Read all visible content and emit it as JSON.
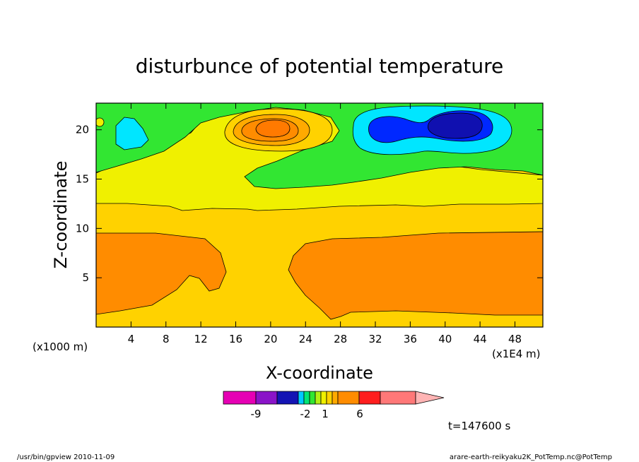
{
  "chart_data": {
    "type": "heatmap",
    "title": "disturbunce of potential temperature",
    "xlabel": "X-coordinate",
    "ylabel": "Z-coordinate",
    "x_unit_left": "(x1000 m)",
    "x_unit_right": "(x1E4 m)",
    "x_ticks": [
      "4",
      "8",
      "12",
      "16",
      "20",
      "24",
      "28",
      "32",
      "36",
      "40",
      "44",
      "48"
    ],
    "y_ticks": [
      "5",
      "10",
      "15",
      "20"
    ],
    "xlim": [
      0,
      51.2
    ],
    "ylim": [
      0,
      22.7
    ],
    "time_label": "t=147600 s",
    "colorbar": {
      "colors": [
        "#e600b4",
        "#8a14c8",
        "#1414b4",
        "#1e3cff",
        "#00c8ff",
        "#00e676",
        "#32e632",
        "#b4f014",
        "#f0f000",
        "#ffd200",
        "#ffaa00",
        "#ff8c00",
        "#ff1e1e",
        "#ff7878",
        "#ffb4b4"
      ],
      "tick_labels": [
        "-9",
        "-2",
        "1",
        "6"
      ]
    },
    "regions": [
      {
        "level": "0 to 1",
        "color": "#32e632",
        "area": "upper layer z > 16 (background)"
      },
      {
        "level": "-1 to 0",
        "color": "#00c8ff",
        "area": "small cell near x=4, z=20.5"
      },
      {
        "level": "-2 to -1",
        "color": "#00c8ff",
        "area": "cell x=29-47, z=18-21.7"
      },
      {
        "level": "-3 to -2",
        "color": "#1414b4",
        "area": "core x=37-43, z=20"
      },
      {
        "level": "1 to 2",
        "color": "#f0f000",
        "area": "z=12.5-16 band and central column"
      },
      {
        "level": "2 to 3",
        "color": "#ffd200",
        "area": "z=0-12.5 middle and bottom"
      },
      {
        "level": "3 to 4",
        "color": "#ff8c00",
        "area": "lower layer z=1.5-9.5 left and right"
      },
      {
        "level": "3 to 4",
        "color": "#ff8c00",
        "area": "warm blob x=20, z=20.3"
      }
    ]
  },
  "footer": {
    "left": "/usr/bin/gpview  2010-11-09",
    "right": "arare-earth-reikyaku2K_PotTemp.nc@PotTemp"
  },
  "colors": {
    "green": "#32e632",
    "yellow": "#f0f000",
    "gold": "#ffd200",
    "orange": "#ff8c00",
    "darkorange": "#ff7a00",
    "cyan": "#00e6ff",
    "blue": "#0028ff",
    "navy": "#1010b0"
  }
}
